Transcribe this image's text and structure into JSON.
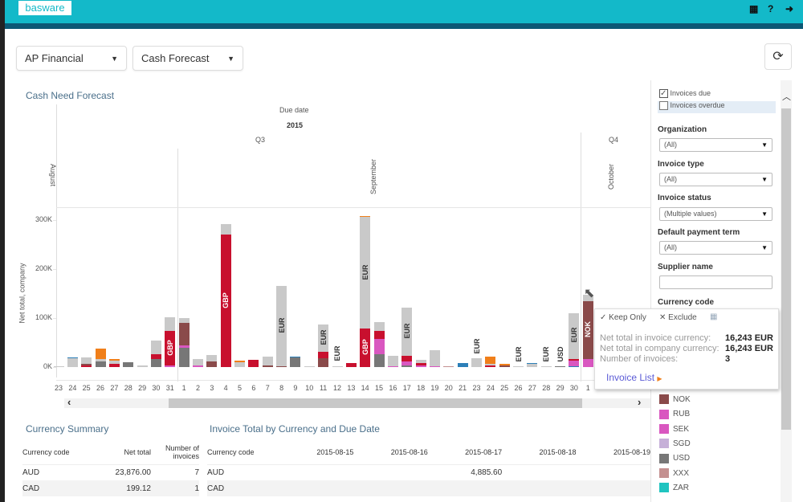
{
  "header": {
    "logo": "basware",
    "icons": [
      "film-icon",
      "help-icon",
      "logout-icon"
    ]
  },
  "toolbar": {
    "app_select": "AP Financial",
    "view_select": "Cash Forecast",
    "refresh_icon": "refresh-icon"
  },
  "chart_data": {
    "type": "bar",
    "title": "Cash Need Forecast",
    "stacked": true,
    "header_levels": {
      "field": "Due date",
      "year": "2015",
      "quarters": [
        "Q3",
        "Q4"
      ],
      "months": [
        "August",
        "September",
        "October"
      ]
    },
    "ylabel": "Net total, company",
    "ylim": [
      0,
      320000
    ],
    "yticks": [
      "0K",
      "100K",
      "200K",
      "300K"
    ],
    "colors": {
      "GBP": "#c8102e",
      "EUR": "#c9c9c9",
      "USD": "#777777",
      "NOK": "#8a4a4a",
      "RUB": "#d957c0",
      "SEK": "#d957c0",
      "SGD": "#c6b0d8",
      "XXX": "#c49090",
      "ZAR": "#20c4c0",
      "orange": "#f07f1a",
      "blue": "#2c7fb8"
    },
    "bars": [
      {
        "day": "23",
        "month": "August",
        "segments": [
          [
            "EUR",
            1000
          ]
        ]
      },
      {
        "day": "24",
        "month": "August",
        "segments": [
          [
            "EUR",
            18000
          ],
          [
            "blue",
            2000
          ]
        ]
      },
      {
        "day": "25",
        "month": "August",
        "segments": [
          [
            "GBP",
            3000
          ],
          [
            "NOK",
            3000
          ],
          [
            "EUR",
            14000
          ]
        ]
      },
      {
        "day": "26",
        "month": "August",
        "segments": [
          [
            "USD",
            12000
          ],
          [
            "EUR",
            5000
          ],
          [
            "orange",
            20000
          ]
        ]
      },
      {
        "day": "27",
        "month": "August",
        "segments": [
          [
            "GBP",
            6000
          ],
          [
            "EUR",
            7000
          ],
          [
            "orange",
            3000
          ]
        ]
      },
      {
        "day": "28",
        "month": "August",
        "segments": [
          [
            "USD",
            10000
          ]
        ]
      },
      {
        "day": "29",
        "month": "August",
        "segments": [
          [
            "EUR",
            4000
          ]
        ]
      },
      {
        "day": "30",
        "month": "August",
        "segments": [
          [
            "USD",
            16000
          ],
          [
            "GBP",
            10000
          ],
          [
            "EUR",
            28000
          ]
        ]
      },
      {
        "day": "31",
        "month": "August",
        "segments": [
          [
            "RUB",
            3000
          ],
          [
            "GBP",
            70000,
            "GBP"
          ],
          [
            "EUR",
            28000
          ]
        ]
      },
      {
        "day": "1",
        "month": "September",
        "segments": [
          [
            "USD",
            40000,
            "USD"
          ],
          [
            "RUB",
            5000
          ],
          [
            "NOK",
            45000
          ],
          [
            "EUR",
            10000
          ]
        ]
      },
      {
        "day": "2",
        "month": "September",
        "segments": [
          [
            "RUB",
            3000
          ],
          [
            "EUR",
            13000
          ]
        ]
      },
      {
        "day": "3",
        "month": "September",
        "segments": [
          [
            "NOK",
            12000
          ],
          [
            "EUR",
            12000
          ]
        ]
      },
      {
        "day": "4",
        "month": "September",
        "segments": [
          [
            "GBP",
            270000,
            "GBP"
          ],
          [
            "EUR",
            22000
          ]
        ]
      },
      {
        "day": "5",
        "month": "September",
        "segments": [
          [
            "EUR",
            10000
          ],
          [
            "orange",
            3000
          ]
        ]
      },
      {
        "day": "6",
        "month": "September",
        "segments": [
          [
            "GBP",
            15000
          ]
        ]
      },
      {
        "day": "7",
        "month": "September",
        "segments": [
          [
            "NOK",
            3000
          ],
          [
            "EUR",
            19000
          ]
        ]
      },
      {
        "day": "8",
        "month": "September",
        "segments": [
          [
            "NOK",
            2000
          ],
          [
            "EUR",
            164000,
            "EUR"
          ]
        ]
      },
      {
        "day": "9",
        "month": "September",
        "segments": [
          [
            "USD",
            19000
          ],
          [
            "blue",
            2000
          ]
        ]
      },
      {
        "day": "10",
        "month": "September",
        "segments": [
          [
            "EUR",
            1000
          ]
        ]
      },
      {
        "day": "11",
        "month": "September",
        "segments": [
          [
            "NOK",
            18000
          ],
          [
            "GBP",
            13000
          ],
          [
            "EUR",
            56000,
            "EUR"
          ]
        ]
      },
      {
        "day": "12",
        "month": "September",
        "segments": [
          [
            "EUR",
            2000,
            "EUR"
          ]
        ]
      },
      {
        "day": "13",
        "month": "September",
        "segments": [
          [
            "GBP",
            8000
          ]
        ]
      },
      {
        "day": "14",
        "month": "September",
        "segments": [
          [
            "GBP",
            78000,
            "GBP"
          ],
          [
            "EUR",
            228000,
            "EUR"
          ],
          [
            "orange",
            1000
          ]
        ]
      },
      {
        "day": "15",
        "month": "September",
        "segments": [
          [
            "USD",
            26000
          ],
          [
            "RUB",
            32000
          ],
          [
            "GBP",
            16000
          ],
          [
            "EUR",
            18000
          ]
        ]
      },
      {
        "day": "16",
        "month": "September",
        "segments": [
          [
            "RUB",
            1000
          ],
          [
            "EUR",
            21000
          ]
        ]
      },
      {
        "day": "17",
        "month": "September",
        "segments": [
          [
            "USD",
            3000
          ],
          [
            "RUB",
            8000
          ],
          [
            "GBP",
            12000
          ],
          [
            "EUR",
            99000,
            "EUR"
          ]
        ]
      },
      {
        "day": "18",
        "month": "September",
        "segments": [
          [
            "RUB",
            4000
          ],
          [
            "GBP",
            5000
          ],
          [
            "EUR",
            6000
          ]
        ]
      },
      {
        "day": "19",
        "month": "September",
        "segments": [
          [
            "RUB",
            1000
          ],
          [
            "EUR",
            33000
          ]
        ]
      },
      {
        "day": "20",
        "month": "September",
        "segments": [
          [
            "XXX",
            2000
          ]
        ]
      },
      {
        "day": "21",
        "month": "September",
        "segments": [
          [
            "blue",
            9000
          ]
        ]
      },
      {
        "day": "23",
        "month": "September",
        "segments": [
          [
            "EUR",
            18000,
            "EUR"
          ]
        ]
      },
      {
        "day": "24",
        "month": "September",
        "segments": [
          [
            "GBP",
            4000
          ],
          [
            "EUR",
            3000
          ],
          [
            "orange",
            15000
          ]
        ]
      },
      {
        "day": "25",
        "month": "September",
        "segments": [
          [
            "NOK",
            3000
          ],
          [
            "orange",
            3000
          ]
        ]
      },
      {
        "day": "26",
        "month": "September",
        "segments": [
          [
            "EUR",
            1000,
            "EUR"
          ]
        ]
      },
      {
        "day": "27",
        "month": "September",
        "segments": [
          [
            "EUR",
            6000
          ],
          [
            "blue",
            2000
          ]
        ]
      },
      {
        "day": "28",
        "month": "September",
        "segments": [
          [
            "EUR",
            500,
            "EUR"
          ]
        ]
      },
      {
        "day": "29",
        "month": "September",
        "segments": [
          [
            "USD",
            1000,
            "USD"
          ]
        ]
      },
      {
        "day": "30",
        "month": "September",
        "segments": [
          [
            "blue",
            1000
          ],
          [
            "RUB",
            12000
          ],
          [
            "GBP",
            3000
          ],
          [
            "EUR",
            94000,
            "EUR"
          ]
        ]
      },
      {
        "day": "1",
        "month": "October",
        "segments": [
          [
            "RUB",
            17000
          ],
          [
            "NOK",
            118000,
            "NOK"
          ],
          [
            "EUR",
            12000
          ]
        ]
      }
    ]
  },
  "filters": {
    "invoices_due": {
      "label": "Invoices due",
      "checked": true
    },
    "invoices_overdue": {
      "label": "Invoices overdue",
      "checked": false
    },
    "organization": {
      "label": "Organization",
      "value": "(All)"
    },
    "invoice_type": {
      "label": "Invoice type",
      "value": "(All)"
    },
    "invoice_status": {
      "label": "Invoice status",
      "value": "(Multiple values)"
    },
    "payment_term": {
      "label": "Default payment term",
      "value": "(All)"
    },
    "supplier_name": {
      "label": "Supplier name",
      "value": ""
    },
    "currency_code": {
      "label": "Currency code",
      "items": [
        {
          "code": "NOK",
          "color": "#8a4a4a"
        },
        {
          "code": "RUB",
          "color": "#d957c0"
        },
        {
          "code": "SEK",
          "color": "#d957c0"
        },
        {
          "code": "SGD",
          "color": "#c6b0d8"
        },
        {
          "code": "USD",
          "color": "#777777"
        },
        {
          "code": "XXX",
          "color": "#c49090"
        },
        {
          "code": "ZAR",
          "color": "#20c4c0"
        }
      ]
    }
  },
  "tooltip": {
    "keep_only": "Keep Only",
    "exclude": "Exclude",
    "rows": [
      {
        "label": "Net total in invoice currency:",
        "value": "16,243 EUR"
      },
      {
        "label": "Net total in company currency:",
        "value": "16,243 EUR"
      },
      {
        "label": "Number of invoices:",
        "value": "3"
      }
    ],
    "link": "Invoice List"
  },
  "currency_summary": {
    "title": "Currency Summary",
    "headers": [
      "Currency code",
      "Net total",
      "Number of invoices"
    ],
    "rows": [
      [
        "AUD",
        "23,876.00",
        "7"
      ],
      [
        "CAD",
        "199.12",
        "1"
      ]
    ]
  },
  "invoice_total": {
    "title": "Invoice Total by Currency and Due Date",
    "headers": [
      "Currency code",
      "2015-08-15",
      "2015-08-16",
      "2015-08-17",
      "2015-08-18",
      "2015-08-19"
    ],
    "rows": [
      [
        "AUD",
        "",
        "",
        "4,885.60",
        "",
        ""
      ],
      [
        "CAD",
        "",
        "",
        "",
        "",
        ""
      ]
    ]
  }
}
